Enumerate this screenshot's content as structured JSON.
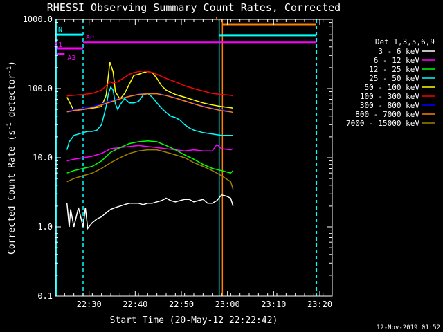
{
  "chart_data": {
    "type": "line",
    "title": "RHESSI Observing Summary Count Rates, Corrected",
    "xlabel": "Start Time (20-May-12 22:22:42)",
    "ylabel_main": "Corrected Count Rate (s",
    "ylabel_sup1": "-1",
    "ylabel_mid": " detector",
    "ylabel_sup2": "-1",
    "ylabel_end": ")",
    "x_unit": "minutes after 22:22:42",
    "xlim": [
      0,
      60
    ],
    "ylim": [
      0.1,
      1000
    ],
    "y_scale": "log",
    "x_ticks": [
      {
        "value": 7.3,
        "label": "22:30"
      },
      {
        "value": 17.3,
        "label": "22:40"
      },
      {
        "value": 27.3,
        "label": "22:50"
      },
      {
        "value": 37.3,
        "label": "23:00"
      },
      {
        "value": 47.3,
        "label": "23:10"
      },
      {
        "value": 57.3,
        "label": "23:20"
      }
    ],
    "y_ticks": [
      {
        "value": 0.1,
        "label": "0.1"
      },
      {
        "value": 1,
        "label": "1.0"
      },
      {
        "value": 10,
        "label": "10.0"
      },
      {
        "value": 100,
        "label": "100.0"
      },
      {
        "value": 1000,
        "label": "1000.0"
      }
    ],
    "legend_title": "Det 1,3,5,6,9",
    "legend_position": "right",
    "series": [
      {
        "name": "3 - 6 keV",
        "color": "#ffffff",
        "x": [
          2.5,
          3.0,
          3.3,
          4.0,
          5.0,
          6.0,
          6.5,
          7.0,
          8.0,
          9.0,
          10.0,
          11.0,
          12.0,
          13.0,
          14.0,
          15.0,
          16.0,
          17.0,
          18.0,
          19.0,
          20.0,
          21.0,
          22.0,
          23.0,
          24.0,
          25.0,
          26.0,
          27.0,
          28.0,
          29.0,
          30.0,
          31.0,
          32.0,
          33.0,
          34.0,
          35.0,
          36.0,
          37.0,
          38.0,
          38.5
        ],
        "y": [
          2.2,
          1.0,
          1.8,
          1.0,
          1.9,
          1.0,
          1.9,
          0.95,
          1.15,
          1.3,
          1.4,
          1.6,
          1.8,
          1.9,
          2.0,
          2.1,
          2.2,
          2.2,
          2.2,
          2.1,
          2.2,
          2.2,
          2.3,
          2.4,
          2.6,
          2.4,
          2.3,
          2.4,
          2.5,
          2.5,
          2.3,
          2.4,
          2.5,
          2.2,
          2.2,
          2.4,
          2.9,
          2.8,
          2.6,
          2.0
        ]
      },
      {
        "name": "6 - 12 keV",
        "color": "#ff00ff",
        "x": [
          2.5,
          4.0,
          6.0,
          8.0,
          10.0,
          12.0,
          14.0,
          16.0,
          18.0,
          20.0,
          22.0,
          24.0,
          26.0,
          28.0,
          30.0,
          32.0,
          34.0,
          35.0,
          36.0,
          38.0,
          38.5
        ],
        "y": [
          9.0,
          9.5,
          10.0,
          10.5,
          11.5,
          13.5,
          14.0,
          14.5,
          15.0,
          14.5,
          14.0,
          13.5,
          13.0,
          12.5,
          13.0,
          12.5,
          12.5,
          15.5,
          13.5,
          13.0,
          13.5
        ]
      },
      {
        "name": "12 - 25 keV",
        "color": "#00ff00",
        "x": [
          2.5,
          4.0,
          6.0,
          8.0,
          10.0,
          12.0,
          14.0,
          16.0,
          18.0,
          20.0,
          22.0,
          24.0,
          26.0,
          28.0,
          30.0,
          32.0,
          34.0,
          36.0,
          38.0,
          38.5
        ],
        "y": [
          6.0,
          6.5,
          7.0,
          7.5,
          9.0,
          12.0,
          14.0,
          16.0,
          17.0,
          17.5,
          17.0,
          15.0,
          13.0,
          11.0,
          9.5,
          8.0,
          7.0,
          6.5,
          6.0,
          6.5
        ]
      },
      {
        "name": "25 - 50 keV",
        "color": "#00ffff",
        "x": [
          2.5,
          3.0,
          4.0,
          5.0,
          6.0,
          7.0,
          8.0,
          9.0,
          10.0,
          11.0,
          11.5,
          12.0,
          12.5,
          13.0,
          13.5,
          14.0,
          15.0,
          16.0,
          17.0,
          18.0,
          19.0,
          20.0,
          21.0,
          22.0,
          23.0,
          24.0,
          25.0,
          26.0,
          27.0,
          28.0,
          29.0,
          30.0,
          32.0,
          34.0,
          36.0,
          38.0,
          38.5
        ],
        "y": [
          13.0,
          17.0,
          21.0,
          22.0,
          23.0,
          24.0,
          24.0,
          25.0,
          30.0,
          55.0,
          85.0,
          105.0,
          95.0,
          60.0,
          50.0,
          58.0,
          72.0,
          62.0,
          62.0,
          65.0,
          80.0,
          85.0,
          75.0,
          62.0,
          52.0,
          45.0,
          40.0,
          38.0,
          35.0,
          30.0,
          27.0,
          25.0,
          23.0,
          22.0,
          21.0,
          21.0,
          21.0
        ]
      },
      {
        "name": "50 - 100 keV",
        "color": "#ffff00",
        "x": [
          2.5,
          4.0,
          6.0,
          8.0,
          10.0,
          11.0,
          11.8,
          12.5,
          13.0,
          14.0,
          15.0,
          16.0,
          17.0,
          18.0,
          19.0,
          20.0,
          21.0,
          22.0,
          23.0,
          24.0,
          25.0,
          26.0,
          28.0,
          30.0,
          32.0,
          34.0,
          36.0,
          38.0,
          38.5
        ],
        "y": [
          75.0,
          48.0,
          50.0,
          52.0,
          55.0,
          80.0,
          240.0,
          175.0,
          90.0,
          70.0,
          85.0,
          115.0,
          155.0,
          160.0,
          170.0,
          175.0,
          170.0,
          140.0,
          110.0,
          95.0,
          88.0,
          82.0,
          75.0,
          68.0,
          62.0,
          58.0,
          55.0,
          53.0,
          52.0
        ]
      },
      {
        "name": "100 - 300 keV",
        "color": "#ff0000",
        "x": [
          2.5,
          4.0,
          6.0,
          8.0,
          10.0,
          11.0,
          11.8,
          12.5,
          13.5,
          15.0,
          16.0,
          17.0,
          18.0,
          19.0,
          20.0,
          21.0,
          22.0,
          23.0,
          24.0,
          26.0,
          28.0,
          30.0,
          32.0,
          34.0,
          36.0,
          38.0,
          38.5
        ],
        "y": [
          78.0,
          80.0,
          82.0,
          85.0,
          95.0,
          110.0,
          125.0,
          120.0,
          125.0,
          145.0,
          160.0,
          170.0,
          175.0,
          180.0,
          175.0,
          170.0,
          160.0,
          150.0,
          140.0,
          125.0,
          110.0,
          100.0,
          92.0,
          85.0,
          82.0,
          80.0,
          78.0
        ]
      },
      {
        "name": "300 - 800 keV",
        "color": "#0000ff",
        "x": [
          2.5,
          4.0,
          6.0,
          8.0,
          10.0,
          12.0,
          14.0,
          16.0,
          18.0,
          20.0,
          22.0,
          24.0,
          26.0,
          28.0,
          30.0,
          32.0,
          34.0,
          36.0,
          38.0
        ],
        "y": [
          47.0,
          50.0,
          52.0,
          55.0,
          60.0,
          66.0,
          72.0,
          78.0,
          83.0,
          86.0,
          85.0,
          80.0,
          74.0,
          67.0,
          61.0,
          56.0,
          52.0,
          49.0,
          47.0
        ]
      },
      {
        "name": "800 - 7000 keV",
        "color": "#ff8000",
        "x": [
          2.5,
          4.0,
          6.0,
          8.0,
          10.0,
          12.0,
          14.0,
          16.0,
          18.0,
          20.0,
          22.0,
          24.0,
          26.0,
          28.0,
          30.0,
          32.0,
          34.0,
          36.0,
          38.0,
          38.5
        ],
        "y": [
          46.0,
          48.0,
          50.0,
          53.0,
          58.0,
          64.0,
          71.0,
          77.0,
          82.0,
          84.0,
          84.0,
          79.0,
          73.0,
          66.0,
          60.0,
          55.0,
          51.0,
          48.0,
          46.0,
          45.0
        ]
      },
      {
        "name": "7000 - 15000 keV",
        "color": "#a08000",
        "x": [
          2.5,
          4.0,
          6.0,
          8.0,
          10.0,
          12.0,
          14.0,
          16.0,
          18.0,
          20.0,
          22.0,
          24.0,
          26.0,
          28.0,
          30.0,
          32.0,
          34.0,
          36.0,
          38.0,
          38.5
        ],
        "y": [
          4.5,
          5.0,
          5.5,
          6.0,
          7.0,
          8.5,
          10.0,
          11.5,
          12.5,
          13.0,
          13.0,
          12.0,
          11.0,
          10.0,
          8.5,
          7.5,
          6.5,
          5.5,
          4.5,
          3.5
        ]
      }
    ],
    "vertical_lines": [
      {
        "x": 0.2,
        "color": "#00ffff",
        "style": "solid"
      },
      {
        "x": 6.0,
        "color": "#00ffff",
        "style": "dashed"
      },
      {
        "x": 35.5,
        "color": "#00ffff",
        "style": "solid"
      },
      {
        "x": 36.2,
        "color": "#ff8000",
        "style": "solid"
      },
      {
        "x": 56.5,
        "color": "#ff8000",
        "style": "dashed"
      },
      {
        "x": 56.6,
        "color": "#00ffff",
        "style": "dashed"
      }
    ],
    "flag_bars": [
      {
        "label": "N",
        "color": "#00ffff",
        "x0": 0,
        "x1": 6.0,
        "y": 600
      },
      {
        "label": "A0",
        "color": "#ff00ff",
        "x0": 6.0,
        "x1": 56.6,
        "y": 470
      },
      {
        "label": "A1",
        "color": "#ff00ff",
        "x0": 0.3,
        "x1": 6.0,
        "y": 380
      },
      {
        "label": "A3",
        "color": "#ff00ff",
        "x0": 0.3,
        "x1": 2.0,
        "y": 315
      },
      {
        "label": "S",
        "color": "#ff8000",
        "x0": 36.2,
        "x1": 56.5,
        "y": 850
      },
      {
        "label": "",
        "color": "#00ffff",
        "x0": 35.5,
        "x1": 56.6,
        "y": 590
      }
    ]
  },
  "footer": {
    "timestamp": "12-Nov-2019 01:52"
  }
}
